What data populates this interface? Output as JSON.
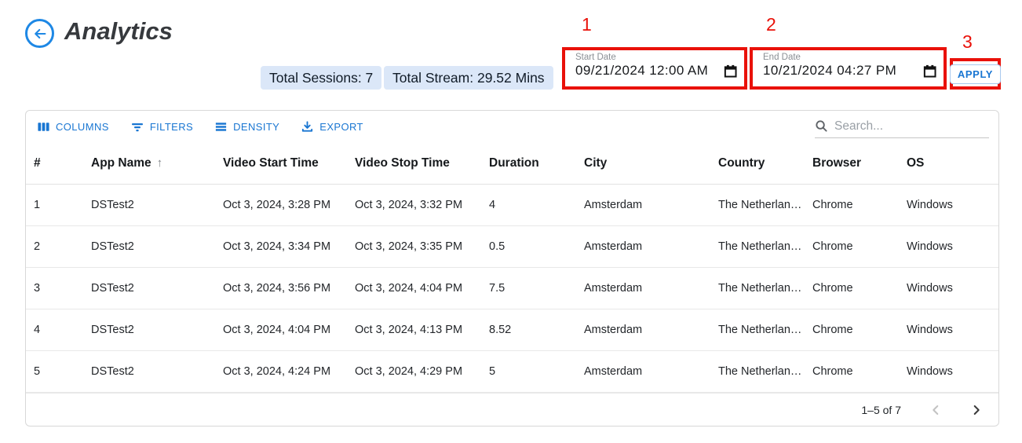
{
  "header": {
    "title": "Analytics",
    "badges": {
      "sessions": "Total Sessions: 7",
      "stream": "Total Stream: 29.52 Mins"
    }
  },
  "filters": {
    "start_date": {
      "label": "Start Date",
      "value": "09/21/2024 12:00 AM"
    },
    "end_date": {
      "label": "End Date",
      "value": "10/21/2024 04:27 PM"
    },
    "apply_label": "APPLY",
    "annotations": {
      "start": "1",
      "end": "2",
      "apply": "3"
    }
  },
  "table": {
    "toolbar": {
      "columns_label": "COLUMNS",
      "filters_label": "FILTERS",
      "density_label": "DENSITY",
      "export_label": "EXPORT",
      "search_placeholder": "Search..."
    },
    "columns": [
      "#",
      "App Name",
      "Video Start Time",
      "Video Stop Time",
      "Duration",
      "City",
      "Country",
      "Browser",
      "OS"
    ],
    "sort": {
      "column": "App Name",
      "direction": "asc",
      "icon": "↑"
    },
    "rows": [
      [
        "1",
        "DSTest2",
        "Oct 3, 2024, 3:28 PM",
        "Oct 3, 2024, 3:32 PM",
        "4",
        "Amsterdam",
        "The Netherlan…",
        "Chrome",
        "Windows"
      ],
      [
        "2",
        "DSTest2",
        "Oct 3, 2024, 3:34 PM",
        "Oct 3, 2024, 3:35 PM",
        "0.5",
        "Amsterdam",
        "The Netherlan…",
        "Chrome",
        "Windows"
      ],
      [
        "3",
        "DSTest2",
        "Oct 3, 2024, 3:56 PM",
        "Oct 3, 2024, 4:04 PM",
        "7.5",
        "Amsterdam",
        "The Netherlan…",
        "Chrome",
        "Windows"
      ],
      [
        "4",
        "DSTest2",
        "Oct 3, 2024, 4:04 PM",
        "Oct 3, 2024, 4:13 PM",
        "8.52",
        "Amsterdam",
        "The Netherlan…",
        "Chrome",
        "Windows"
      ],
      [
        "5",
        "DSTest2",
        "Oct 3, 2024, 4:24 PM",
        "Oct 3, 2024, 4:29 PM",
        "5",
        "Amsterdam",
        "The Netherlan…",
        "Chrome",
        "Windows"
      ]
    ],
    "pagination": {
      "range_label": "1–5 of 7"
    }
  },
  "colors": {
    "accent_blue": "#1976d2",
    "annotation_red": "#e91109",
    "badge_bg": "#dbe7f8"
  }
}
